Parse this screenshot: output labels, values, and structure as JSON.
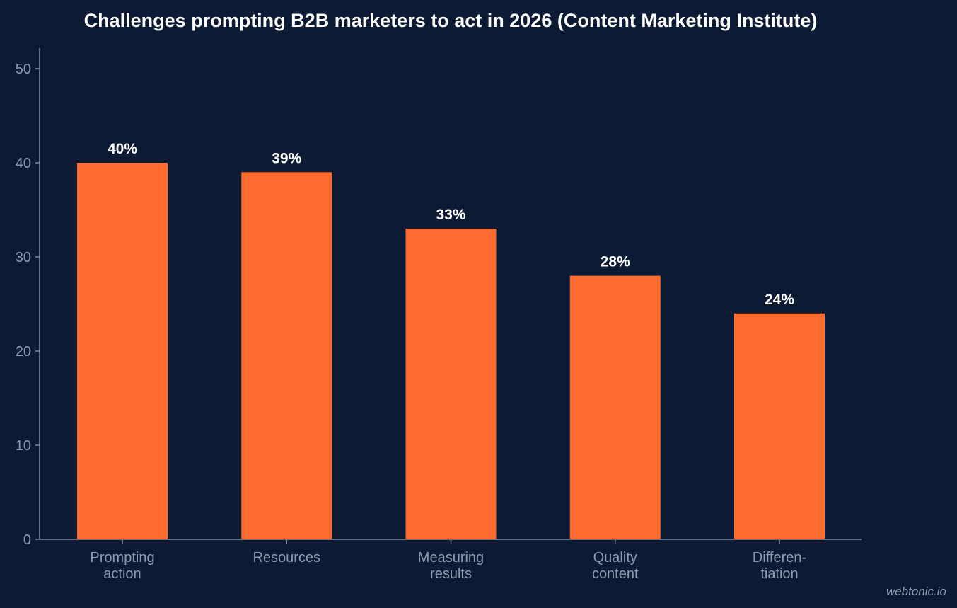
{
  "colors": {
    "background": "#0c1b33",
    "bar": "#ff6b2e",
    "axis": "#7f8fa6",
    "tick_text": "#8d9cb3",
    "title_text": "#ffffff",
    "value_text": "#ffffff",
    "watermark_text": "#8d9cb3"
  },
  "watermark": "webtonic.io",
  "chart_data": {
    "type": "bar",
    "title": "Challenges prompting B2B marketers to act in 2026 (Content Marketing Institute)",
    "xlabel": "",
    "ylabel": "",
    "categories": [
      [
        "Prompting",
        "action"
      ],
      [
        "Resources"
      ],
      [
        "Measuring",
        "results"
      ],
      [
        "Quality",
        "content"
      ],
      [
        "Differen-",
        "tiation"
      ]
    ],
    "values": [
      40,
      39,
      33,
      28,
      24
    ],
    "value_labels": [
      "40%",
      "39%",
      "33%",
      "28%",
      "24%"
    ],
    "ylim": [
      0,
      52
    ],
    "yticks": [
      0,
      10,
      20,
      30,
      40,
      50
    ],
    "grid": false,
    "legend": "none"
  }
}
